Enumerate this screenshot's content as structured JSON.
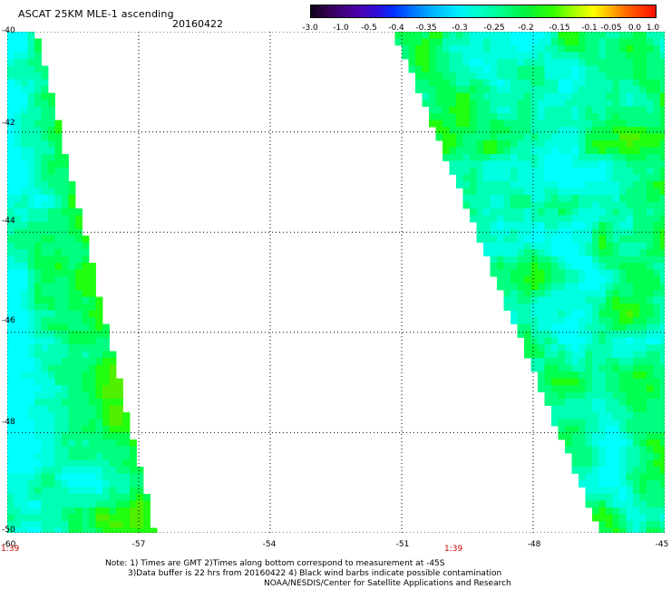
{
  "header": {
    "title": "ASCAT 25KM MLE-1 ascending",
    "date": "20160422"
  },
  "colorbar": {
    "labels": [
      "-3.0",
      "-1.0",
      "-0.5",
      "-0.4",
      "-0.35",
      "-0.3",
      "-0.25",
      "-0.2",
      "-0.15",
      "-0.1",
      "-0.05",
      "0.0",
      "1.0"
    ]
  },
  "map": {
    "lat_labels": [
      "-40",
      "-42",
      "-44",
      "-46",
      "-48",
      "-50"
    ],
    "lon_labels": [
      "-60",
      "-57",
      "-54",
      "-51",
      "-48",
      "-45"
    ],
    "time_labels": [
      "1:39",
      "1:39"
    ],
    "lat_range": [
      -50,
      -40
    ],
    "lon_range": [
      -60,
      -45
    ],
    "grid": true,
    "swaths": [
      {
        "name": "left swath",
        "lat_range": [
          -50,
          -40
        ],
        "lon_west": -60,
        "lon_east_at_north": -59.4,
        "lon_east_at_south": -56.7
      },
      {
        "name": "right swath",
        "lat_range": [
          -50,
          -40
        ],
        "lon_east": -45,
        "lon_west_at_north": -51.1,
        "lon_west_at_south": -46.4
      }
    ],
    "colors": {
      "background": "#ffffff",
      "grid": "#000000",
      "time": "#c80000"
    }
  },
  "notes": {
    "line1": "Note: 1) Times are GMT 2)Times along bottom correspond to measurement at -45S",
    "line2": "3)Data buffer is 22 hrs from 20160422 4) Black wind barbs indicate possible contamination",
    "line3": "NOAA/NESDIS/Center for Satellite Applications and Research"
  }
}
